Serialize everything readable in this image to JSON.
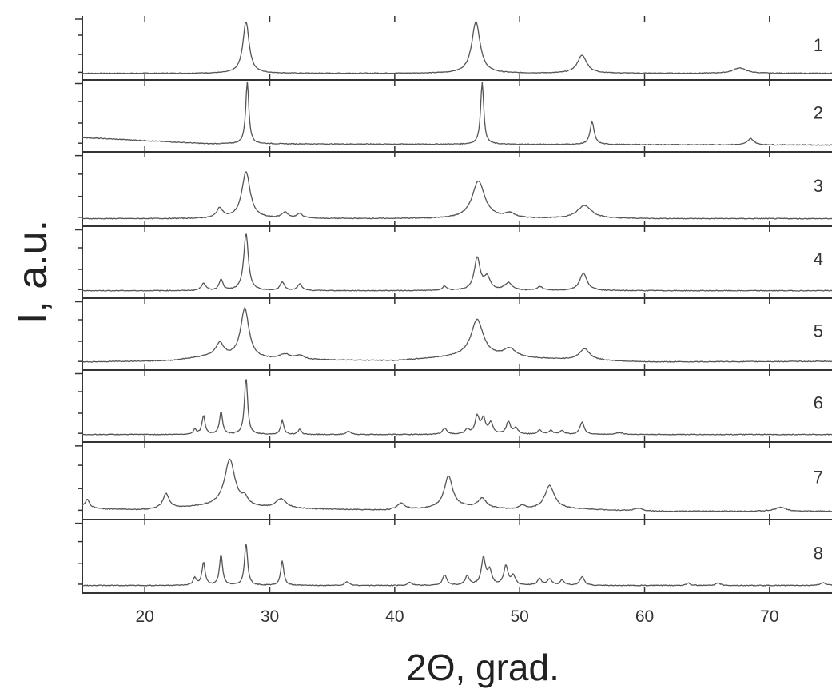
{
  "chart_data": {
    "type": "line",
    "title": "",
    "xlabel": "2Θ, grad.",
    "ylabel": "I, a.u.",
    "xlim": [
      15,
      75
    ],
    "xticks": [
      20,
      30,
      40,
      50,
      60,
      70
    ],
    "grid": false,
    "line_color": "#555555",
    "series": [
      {
        "name": "1",
        "background": [
          [
            15,
            0.02
          ],
          [
            75,
            0.02
          ]
        ],
        "peaks": [
          [
            28.1,
            0.95,
            0.3
          ],
          [
            46.5,
            0.95,
            0.4
          ],
          [
            55.0,
            0.33,
            0.45
          ],
          [
            67.6,
            0.1,
            0.6
          ]
        ]
      },
      {
        "name": "2",
        "background": [
          [
            15,
            0.14
          ],
          [
            25,
            0.04
          ],
          [
            75,
            0.02
          ]
        ],
        "peaks": [
          [
            28.2,
            1.0,
            0.15
          ],
          [
            47.0,
            1.0,
            0.15
          ],
          [
            55.8,
            0.36,
            0.2
          ],
          [
            68.5,
            0.1,
            0.3
          ]
        ]
      },
      {
        "name": "3",
        "background": [
          [
            15,
            0.03
          ],
          [
            75,
            0.03
          ]
        ],
        "peaks": [
          [
            26.0,
            0.15,
            0.3
          ],
          [
            28.1,
            0.72,
            0.4
          ],
          [
            31.2,
            0.09,
            0.3
          ],
          [
            32.4,
            0.07,
            0.3
          ],
          [
            46.7,
            0.58,
            0.6
          ],
          [
            49.2,
            0.07,
            0.5
          ],
          [
            55.2,
            0.2,
            0.7
          ]
        ]
      },
      {
        "name": "4",
        "background": [
          [
            15,
            0.03
          ],
          [
            75,
            0.03
          ]
        ],
        "peaks": [
          [
            24.7,
            0.12,
            0.2
          ],
          [
            26.1,
            0.18,
            0.18
          ],
          [
            28.1,
            0.92,
            0.22
          ],
          [
            31.0,
            0.14,
            0.2
          ],
          [
            32.4,
            0.11,
            0.2
          ],
          [
            44.0,
            0.07,
            0.2
          ],
          [
            46.6,
            0.52,
            0.28
          ],
          [
            47.4,
            0.2,
            0.3
          ],
          [
            49.1,
            0.12,
            0.35
          ],
          [
            51.6,
            0.06,
            0.3
          ],
          [
            55.1,
            0.28,
            0.35
          ]
        ]
      },
      {
        "name": "5",
        "background": [
          [
            15,
            0.04
          ],
          [
            22,
            0.06
          ],
          [
            25,
            0.12
          ],
          [
            30,
            0.08
          ],
          [
            40,
            0.06
          ],
          [
            45,
            0.12
          ],
          [
            50,
            0.1
          ],
          [
            60,
            0.04
          ],
          [
            75,
            0.05
          ]
        ],
        "peaks": [
          [
            26.0,
            0.22,
            0.4
          ],
          [
            28.0,
            0.8,
            0.4
          ],
          [
            31.2,
            0.08,
            0.5
          ],
          [
            32.4,
            0.06,
            0.4
          ],
          [
            46.6,
            0.6,
            0.6
          ],
          [
            49.2,
            0.14,
            0.6
          ],
          [
            55.2,
            0.18,
            0.5
          ]
        ]
      },
      {
        "name": "6",
        "background": [
          [
            15,
            0.03
          ],
          [
            75,
            0.03
          ]
        ],
        "peaks": [
          [
            24.0,
            0.08,
            0.15
          ],
          [
            24.7,
            0.3,
            0.15
          ],
          [
            26.1,
            0.36,
            0.15
          ],
          [
            28.1,
            0.92,
            0.15
          ],
          [
            31.0,
            0.22,
            0.15
          ],
          [
            32.4,
            0.08,
            0.15
          ],
          [
            36.3,
            0.05,
            0.2
          ],
          [
            44.0,
            0.1,
            0.2
          ],
          [
            45.8,
            0.08,
            0.2
          ],
          [
            46.6,
            0.28,
            0.2
          ],
          [
            47.1,
            0.24,
            0.2
          ],
          [
            47.7,
            0.18,
            0.2
          ],
          [
            49.1,
            0.2,
            0.2
          ],
          [
            49.7,
            0.1,
            0.2
          ],
          [
            51.6,
            0.07,
            0.2
          ],
          [
            52.5,
            0.06,
            0.2
          ],
          [
            53.4,
            0.06,
            0.2
          ],
          [
            55.0,
            0.2,
            0.2
          ],
          [
            58.0,
            0.03,
            0.3
          ]
        ]
      },
      {
        "name": "7",
        "background": [
          [
            15,
            0.1
          ],
          [
            17,
            0.07
          ],
          [
            20,
            0.06
          ],
          [
            26,
            0.12
          ],
          [
            30,
            0.08
          ],
          [
            40,
            0.05
          ],
          [
            45,
            0.1
          ],
          [
            50,
            0.06
          ],
          [
            53,
            0.08
          ],
          [
            60,
            0.04
          ],
          [
            75,
            0.04
          ]
        ],
        "peaks": [
          [
            15.4,
            0.12,
            0.2
          ],
          [
            21.7,
            0.22,
            0.3
          ],
          [
            26.8,
            0.68,
            0.5
          ],
          [
            28.0,
            0.1,
            0.3
          ],
          [
            30.9,
            0.14,
            0.5
          ],
          [
            40.5,
            0.1,
            0.4
          ],
          [
            44.3,
            0.46,
            0.4
          ],
          [
            47.0,
            0.14,
            0.4
          ],
          [
            50.2,
            0.06,
            0.3
          ],
          [
            52.4,
            0.34,
            0.45
          ],
          [
            59.5,
            0.04,
            0.4
          ],
          [
            70.9,
            0.06,
            0.5
          ]
        ]
      },
      {
        "name": "8",
        "background": [
          [
            15,
            0.03
          ],
          [
            75,
            0.03
          ]
        ],
        "peaks": [
          [
            24.0,
            0.12,
            0.15
          ],
          [
            24.7,
            0.36,
            0.15
          ],
          [
            26.1,
            0.48,
            0.15
          ],
          [
            28.1,
            0.66,
            0.15
          ],
          [
            31.0,
            0.38,
            0.15
          ],
          [
            36.2,
            0.06,
            0.2
          ],
          [
            41.2,
            0.05,
            0.2
          ],
          [
            44.0,
            0.16,
            0.2
          ],
          [
            45.8,
            0.14,
            0.2
          ],
          [
            47.1,
            0.42,
            0.2
          ],
          [
            47.6,
            0.22,
            0.2
          ],
          [
            48.9,
            0.3,
            0.2
          ],
          [
            49.5,
            0.14,
            0.2
          ],
          [
            51.6,
            0.1,
            0.2
          ],
          [
            52.4,
            0.1,
            0.2
          ],
          [
            53.4,
            0.08,
            0.2
          ],
          [
            55.0,
            0.14,
            0.2
          ],
          [
            63.5,
            0.04,
            0.2
          ],
          [
            65.9,
            0.04,
            0.2
          ],
          [
            74.3,
            0.04,
            0.3
          ]
        ]
      }
    ]
  }
}
